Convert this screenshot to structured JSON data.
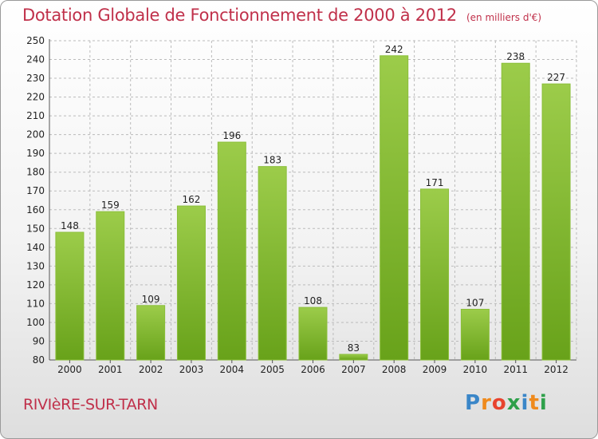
{
  "header": {
    "title": "Dotation Globale de Fonctionnement de 2000 à 2012",
    "subtitle": "(en milliers d'€)"
  },
  "footer": {
    "commune": "RIVIèRE-SUR-TARN",
    "logo": "Proxiti"
  },
  "colors": {
    "title": "#c0304a",
    "bar_light": "#9ccc4a",
    "bar_dark": "#68a21a",
    "grid": "#bbbbbb",
    "logo": [
      "#3a86c8",
      "#ef8a1c",
      "#e8432e",
      "#2ea04a",
      "#3a86c8",
      "#ef8a1c",
      "#2ea04a"
    ]
  },
  "chart_data": {
    "type": "bar",
    "title": "Dotation Globale de Fonctionnement de 2000 à 2012",
    "subtitle": "(en milliers d'€)",
    "categories": [
      "2000",
      "2001",
      "2002",
      "2003",
      "2004",
      "2005",
      "2006",
      "2007",
      "2008",
      "2009",
      "2010",
      "2011",
      "2012"
    ],
    "values": [
      148,
      159,
      109,
      162,
      196,
      183,
      108,
      83,
      242,
      171,
      107,
      238,
      227
    ],
    "ylim": [
      80,
      250
    ],
    "ytick_step": 10,
    "grid": true,
    "data_labels": true
  }
}
